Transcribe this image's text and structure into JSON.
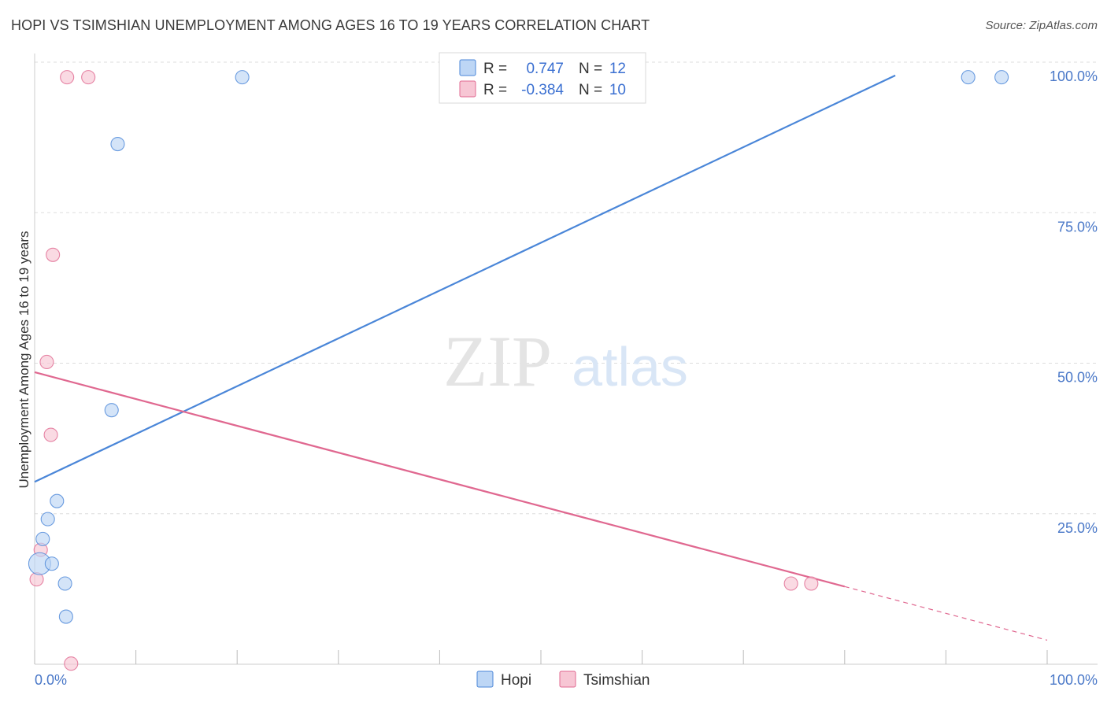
{
  "header": {
    "title": "HOPI VS TSIMSHIAN UNEMPLOYMENT AMONG AGES 16 TO 19 YEARS CORRELATION CHART",
    "source": "Source: ZipAtlas.com"
  },
  "watermark": {
    "zip": "ZIP",
    "atlas": "atlas"
  },
  "colors": {
    "hopi": "#4a86d8",
    "hopi_fill": "#bdd6f5",
    "tsimshian": "#e06890",
    "tsimshian_fill": "#f7c6d4",
    "grid": "#dddddd",
    "tick_text": "#4a78c8"
  },
  "legend": {
    "hopi": {
      "r_label": "R =",
      "r_value": "0.747",
      "n_label": "N =",
      "n_value": "12"
    },
    "tsimshian": {
      "r_label": "R =",
      "r_value": "-0.384",
      "n_label": "N =",
      "n_value": "10"
    }
  },
  "chart_data": {
    "type": "scatter",
    "title": "HOPI VS TSIMSHIAN UNEMPLOYMENT AMONG AGES 16 TO 19 YEARS CORRELATION CHART",
    "xlabel": "",
    "ylabel": "Unemployment Among Ages 16 to 19 years",
    "xlim": [
      0,
      100
    ],
    "ylim": [
      0,
      100
    ],
    "x_tick_labels": [
      "0.0%",
      "100.0%"
    ],
    "y_ticks": [
      {
        "value": 25,
        "label": "25.0%"
      },
      {
        "value": 50,
        "label": "50.0%"
      },
      {
        "value": 75,
        "label": "75.0%"
      },
      {
        "value": 100,
        "label": "100.0%"
      }
    ],
    "series": [
      {
        "name": "Hopi",
        "points": [
          {
            "x": 20.5,
            "y": 97.5
          },
          {
            "x": 92.2,
            "y": 97.5
          },
          {
            "x": 95.5,
            "y": 97.5
          },
          {
            "x": 8.2,
            "y": 86.4
          },
          {
            "x": 7.6,
            "y": 42.2
          },
          {
            "x": 2.2,
            "y": 27.1
          },
          {
            "x": 1.3,
            "y": 24.1
          },
          {
            "x": 0.8,
            "y": 20.8
          },
          {
            "x": 0.5,
            "y": 16.7,
            "large": true
          },
          {
            "x": 1.7,
            "y": 16.7
          },
          {
            "x": 3.0,
            "y": 13.4
          },
          {
            "x": 3.1,
            "y": 7.9
          }
        ],
        "trend": {
          "x0": 0,
          "y0": 30.3,
          "x1": 85,
          "y1": 97.8,
          "dash_to_x": null
        }
      },
      {
        "name": "Tsimshian",
        "points": [
          {
            "x": 3.2,
            "y": 97.5
          },
          {
            "x": 5.3,
            "y": 97.5
          },
          {
            "x": 1.8,
            "y": 68.0
          },
          {
            "x": 1.2,
            "y": 50.2
          },
          {
            "x": 1.6,
            "y": 38.1
          },
          {
            "x": 0.6,
            "y": 19.0
          },
          {
            "x": 0.2,
            "y": 14.1
          },
          {
            "x": 74.7,
            "y": 13.4
          },
          {
            "x": 76.7,
            "y": 13.4
          },
          {
            "x": 3.6,
            "y": 0.1
          }
        ],
        "trend": {
          "x0": 0,
          "y0": 48.5,
          "x1": 80,
          "y1": 12.9,
          "dash_to_x": 100,
          "dash_y": 4.0
        }
      }
    ],
    "bottom_legend": [
      "Hopi",
      "Tsimshian"
    ]
  }
}
